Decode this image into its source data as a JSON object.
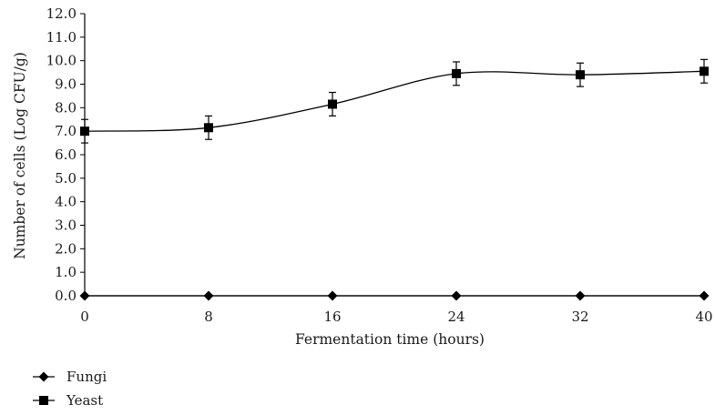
{
  "chart_data": {
    "type": "line",
    "title": "",
    "xlabel": "Fermentation time (hours)",
    "ylabel": "Number of cells (Log CFU/g)",
    "x": [
      0,
      8,
      16,
      24,
      32,
      40
    ],
    "xlim": [
      0,
      40
    ],
    "ylim": [
      0,
      12
    ],
    "x_ticks": [
      "0",
      "8",
      "16",
      "24",
      "32",
      "40"
    ],
    "y_ticks": [
      "0.0",
      "1.0",
      "2.0",
      "3.0",
      "4.0",
      "5.0",
      "6.0",
      "7.0",
      "8.0",
      "9.0",
      "10.0",
      "11.0",
      "12.0"
    ],
    "grid": false,
    "legend_position": "bottom-left",
    "series": [
      {
        "name": "Fungi",
        "marker": "diamond",
        "smooth": false,
        "color": "#000000",
        "values": [
          0,
          0,
          0,
          0,
          0,
          0
        ]
      },
      {
        "name": "Yeast",
        "marker": "square",
        "smooth": true,
        "color": "#000000",
        "values": [
          7.0,
          7.15,
          8.15,
          9.45,
          9.4,
          9.55
        ],
        "error": [
          0.5,
          0.5,
          0.5,
          0.5,
          0.5,
          0.5
        ]
      }
    ]
  }
}
